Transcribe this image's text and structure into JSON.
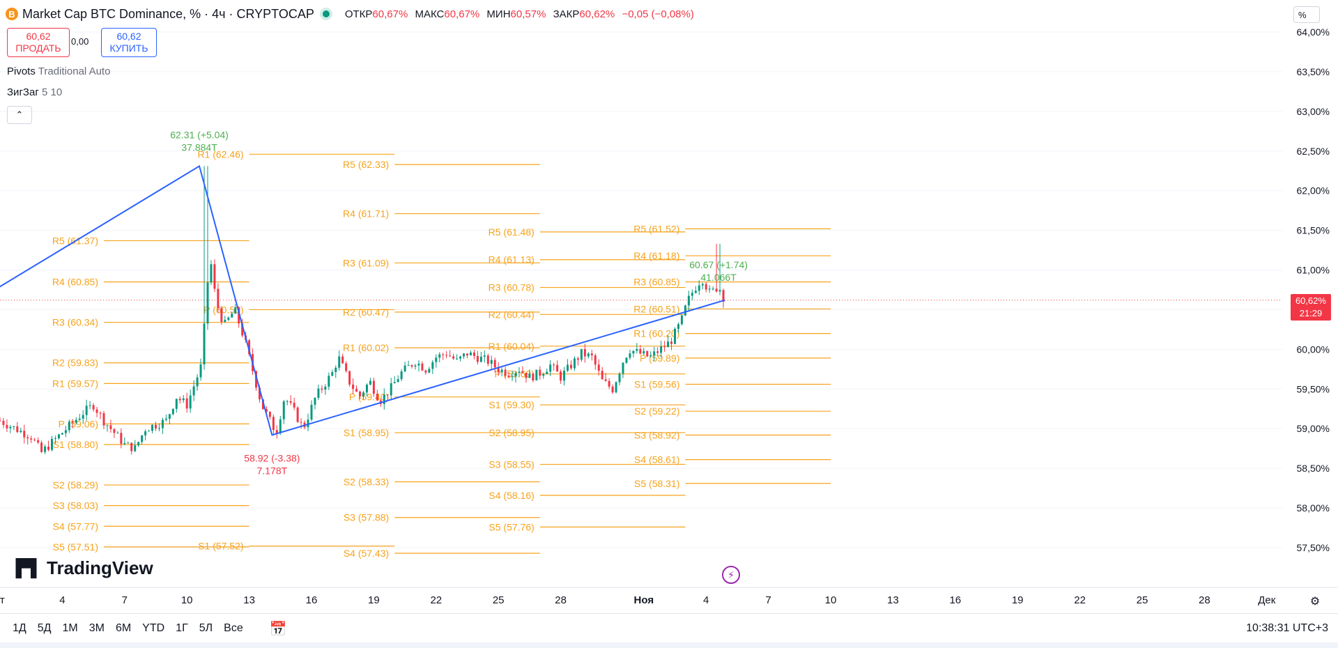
{
  "header": {
    "coin_icon": "B",
    "title": "Market Cap BTC Dominance, % · 4ч · CRYPTOCAP",
    "ohlc": [
      {
        "k": "ОТКР",
        "v": "60,67%"
      },
      {
        "k": "МАКС",
        "v": "60,67%"
      },
      {
        "k": "МИН",
        "v": "60,57%"
      },
      {
        "k": "ЗАКР",
        "v": "60,62%"
      }
    ],
    "change": "−0,05 (−0,08%)"
  },
  "trade": {
    "sell_price": "60,62",
    "sell_label": "ПРОДАТЬ",
    "spread": "0,00",
    "buy_price": "60,62",
    "buy_label": "КУПИТЬ"
  },
  "indicators": [
    {
      "name": "Pivots",
      "params": "Traditional Auto"
    },
    {
      "name": "ЗигЗаг",
      "params": "5 10"
    }
  ],
  "collapse_icon": "⌃",
  "scale_mode": "%",
  "colors": {
    "up": "#089981",
    "down": "#f23645",
    "pivot": "#f7a21b",
    "zigzag": "#2962ff",
    "annot_up": "#4caf50"
  },
  "chart_data": {
    "type": "candlestick",
    "title": "Market Cap BTC Dominance, %",
    "ylim": [
      57.2,
      64.3
    ],
    "ytick_values": [
      57.5,
      58.0,
      58.5,
      59.0,
      59.5,
      60.0,
      60.5,
      61.0,
      61.5,
      62.0,
      62.5,
      63.0,
      63.5,
      64.0
    ],
    "ytick_labels": [
      "57,50%",
      "58,00%",
      "58,50%",
      "59,00%",
      "59,50%",
      "60,00%",
      "60,50%",
      "61,00%",
      "61,50%",
      "62,00%",
      "62,50%",
      "63,00%",
      "63,50%",
      "64,00%"
    ],
    "xticks": [
      {
        "label": "кт",
        "d": 0
      },
      {
        "label": "4",
        "d": 3
      },
      {
        "label": "7",
        "d": 6
      },
      {
        "label": "10",
        "d": 9
      },
      {
        "label": "13",
        "d": 12
      },
      {
        "label": "16",
        "d": 15
      },
      {
        "label": "19",
        "d": 18
      },
      {
        "label": "22",
        "d": 21
      },
      {
        "label": "25",
        "d": 24
      },
      {
        "label": "28",
        "d": 27
      },
      {
        "label": "Ноя",
        "d": 31
      },
      {
        "label": "4",
        "d": 34
      },
      {
        "label": "7",
        "d": 37
      },
      {
        "label": "10",
        "d": 40
      },
      {
        "label": "13",
        "d": 43
      },
      {
        "label": "16",
        "d": 46
      },
      {
        "label": "19",
        "d": 49
      },
      {
        "label": "22",
        "d": 52
      },
      {
        "label": "25",
        "d": 55
      },
      {
        "label": "28",
        "d": 58
      },
      {
        "label": "Дек",
        "d": 61
      }
    ],
    "anchor_points": [
      [
        0,
        59.1
      ],
      [
        1.5,
        58.9
      ],
      [
        2,
        58.7
      ],
      [
        3,
        58.95
      ],
      [
        4,
        59.2
      ],
      [
        4.5,
        59.3
      ],
      [
        5,
        59.1
      ],
      [
        6,
        58.8
      ],
      [
        6.5,
        58.75
      ],
      [
        7,
        59.0
      ],
      [
        8,
        59.1
      ],
      [
        8.5,
        59.4
      ],
      [
        9,
        59.3
      ],
      [
        9.7,
        59.8
      ],
      [
        9.9,
        60.5
      ],
      [
        10.1,
        61.2
      ],
      [
        10.4,
        60.6
      ],
      [
        10.8,
        60.3
      ],
      [
        11.3,
        60.5
      ],
      [
        11.8,
        60.1
      ],
      [
        12.2,
        59.7
      ],
      [
        12.6,
        59.3
      ],
      [
        13,
        59.1
      ],
      [
        13.3,
        58.95
      ],
      [
        13.7,
        59.4
      ],
      [
        14.2,
        59.2
      ],
      [
        14.6,
        59.0
      ],
      [
        15.2,
        59.4
      ],
      [
        16.0,
        59.7
      ],
      [
        16.3,
        59.9
      ],
      [
        16.8,
        59.6
      ],
      [
        17.3,
        59.4
      ],
      [
        17.8,
        59.6
      ],
      [
        18.3,
        59.35
      ],
      [
        18.8,
        59.5
      ],
      [
        19.3,
        59.7
      ],
      [
        20.0,
        59.85
      ],
      [
        20.5,
        59.75
      ],
      [
        21.0,
        59.9
      ],
      [
        21.5,
        59.95
      ],
      [
        22.0,
        59.85
      ],
      [
        22.5,
        59.95
      ],
      [
        23.0,
        59.9
      ],
      [
        23.5,
        59.85
      ],
      [
        24.0,
        59.75
      ],
      [
        24.5,
        59.7
      ],
      [
        25.0,
        59.75
      ],
      [
        25.5,
        59.65
      ],
      [
        26.0,
        59.7
      ],
      [
        26.5,
        59.8
      ],
      [
        27.0,
        59.65
      ],
      [
        27.5,
        59.8
      ],
      [
        28.0,
        59.95
      ],
      [
        28.5,
        59.9
      ],
      [
        29.0,
        59.6
      ],
      [
        29.5,
        59.5
      ],
      [
        30.0,
        59.85
      ],
      [
        30.3,
        60.0
      ],
      [
        30.8,
        59.95
      ],
      [
        31.3,
        59.9
      ],
      [
        31.8,
        60.0
      ],
      [
        32.3,
        60.1
      ],
      [
        32.8,
        60.35
      ],
      [
        33.1,
        60.6
      ],
      [
        33.4,
        60.75
      ],
      [
        33.8,
        60.9
      ],
      [
        34.2,
        60.7
      ],
      [
        34.6,
        60.8
      ],
      [
        34.9,
        60.62
      ]
    ],
    "zigzag": [
      [
        -5,
        60.0
      ],
      [
        9.6,
        62.31
      ],
      [
        13.1,
        58.92
      ],
      [
        34.9,
        60.62
      ]
    ],
    "zigzag_labels": [
      {
        "d": 9.6,
        "v": 62.31,
        "lines": [
          "62.31 (+5.04)",
          "37.884T"
        ],
        "pos": "above",
        "color": "#4caf50"
      },
      {
        "d": 13.1,
        "v": 58.92,
        "lines": [
          "58.92 (-3.38)",
          "7.178T"
        ],
        "pos": "below",
        "color": "#f23645"
      },
      {
        "d": 34.6,
        "v": 60.67,
        "lines": [
          "60.67 (+1.74)",
          "41.066T"
        ],
        "pos": "above",
        "color": "#4caf50"
      }
    ],
    "pivot_periods": [
      {
        "from": -5,
        "to": 5,
        "levels": []
      },
      {
        "from": 5,
        "to": 12,
        "levels": [
          {
            "label": "R5 (61.37)",
            "v": 61.37
          },
          {
            "label": "R4 (60.85)",
            "v": 60.85
          },
          {
            "label": "R3 (60.34)",
            "v": 60.34
          },
          {
            "label": "R2 (59.83)",
            "v": 59.83
          },
          {
            "label": "R1 (59.57)",
            "v": 59.57
          },
          {
            "label": "P (59.06)",
            "v": 59.06
          },
          {
            "label": "S1 (58.80)",
            "v": 58.8
          },
          {
            "label": "S2 (58.29)",
            "v": 58.29
          },
          {
            "label": "S3 (58.03)",
            "v": 58.03
          },
          {
            "label": "S4 (57.77)",
            "v": 57.77
          },
          {
            "label": "S5 (57.51)",
            "v": 57.51
          }
        ]
      },
      {
        "from": 12,
        "to": 19,
        "levels": [
          {
            "label": "R1 (62.46)",
            "v": 62.46
          },
          {
            "label": "P (60.50)",
            "v": 60.5
          },
          {
            "label": "S1 (57.52)",
            "v": 57.52
          }
        ]
      },
      {
        "from": 19,
        "to": 26,
        "levels": [
          {
            "label": "R5 (62.33)",
            "v": 62.33
          },
          {
            "label": "R4 (61.71)",
            "v": 61.71
          },
          {
            "label": "R3 (61.09)",
            "v": 61.09
          },
          {
            "label": "R2 (60.47)",
            "v": 60.47
          },
          {
            "label": "R1 (60.02)",
            "v": 60.02
          },
          {
            "label": "P (59.40)",
            "v": 59.4
          },
          {
            "label": "S1 (58.95)",
            "v": 58.95
          },
          {
            "label": "S2 (58.33)",
            "v": 58.33
          },
          {
            "label": "S3 (57.88)",
            "v": 57.88
          },
          {
            "label": "S4 (57.43)",
            "v": 57.43
          }
        ]
      },
      {
        "from": 26,
        "to": 33,
        "levels": [
          {
            "label": "R5 (61.48)",
            "v": 61.48
          },
          {
            "label": "R4 (61.13)",
            "v": 61.13
          },
          {
            "label": "R3 (60.78)",
            "v": 60.78
          },
          {
            "label": "R2 (60.44)",
            "v": 60.44
          },
          {
            "label": "R1 (60.04)",
            "v": 60.04
          },
          {
            "label": "P (59.69)",
            "v": 59.69
          },
          {
            "label": "S1 (59.30)",
            "v": 59.3
          },
          {
            "label": "S2 (58.95)",
            "v": 58.95
          },
          {
            "label": "S3 (58.55)",
            "v": 58.55
          },
          {
            "label": "S4 (58.16)",
            "v": 58.16
          },
          {
            "label": "S5 (57.76)",
            "v": 57.76
          }
        ]
      },
      {
        "from": 33,
        "to": 40,
        "levels": [
          {
            "label": "R5 (61.52)",
            "v": 61.52
          },
          {
            "label": "R4 (61.18)",
            "v": 61.18
          },
          {
            "label": "R3 (60.85)",
            "v": 60.85
          },
          {
            "label": "R2 (60.51)",
            "v": 60.51
          },
          {
            "label": "R1 (60.20)",
            "v": 60.2
          },
          {
            "label": "P (59.89)",
            "v": 59.89
          },
          {
            "label": "S1 (59.56)",
            "v": 59.56
          },
          {
            "label": "S2 (59.22)",
            "v": 59.22
          },
          {
            "label": "S3 (58.92)",
            "v": 58.92
          },
          {
            "label": "S4 (58.61)",
            "v": 58.61
          },
          {
            "label": "S5 (58.31)",
            "v": 58.31
          }
        ]
      }
    ],
    "last_price": {
      "value": 60.62,
      "label": "60,62%",
      "countdown": "21:29"
    }
  },
  "logo_text": "TradingView",
  "bottom": {
    "ranges": [
      "1Д",
      "5Д",
      "1М",
      "3М",
      "6М",
      "YTD",
      "1Г",
      "5Л",
      "Все"
    ],
    "clock": "10:38:31 UTC+3"
  }
}
